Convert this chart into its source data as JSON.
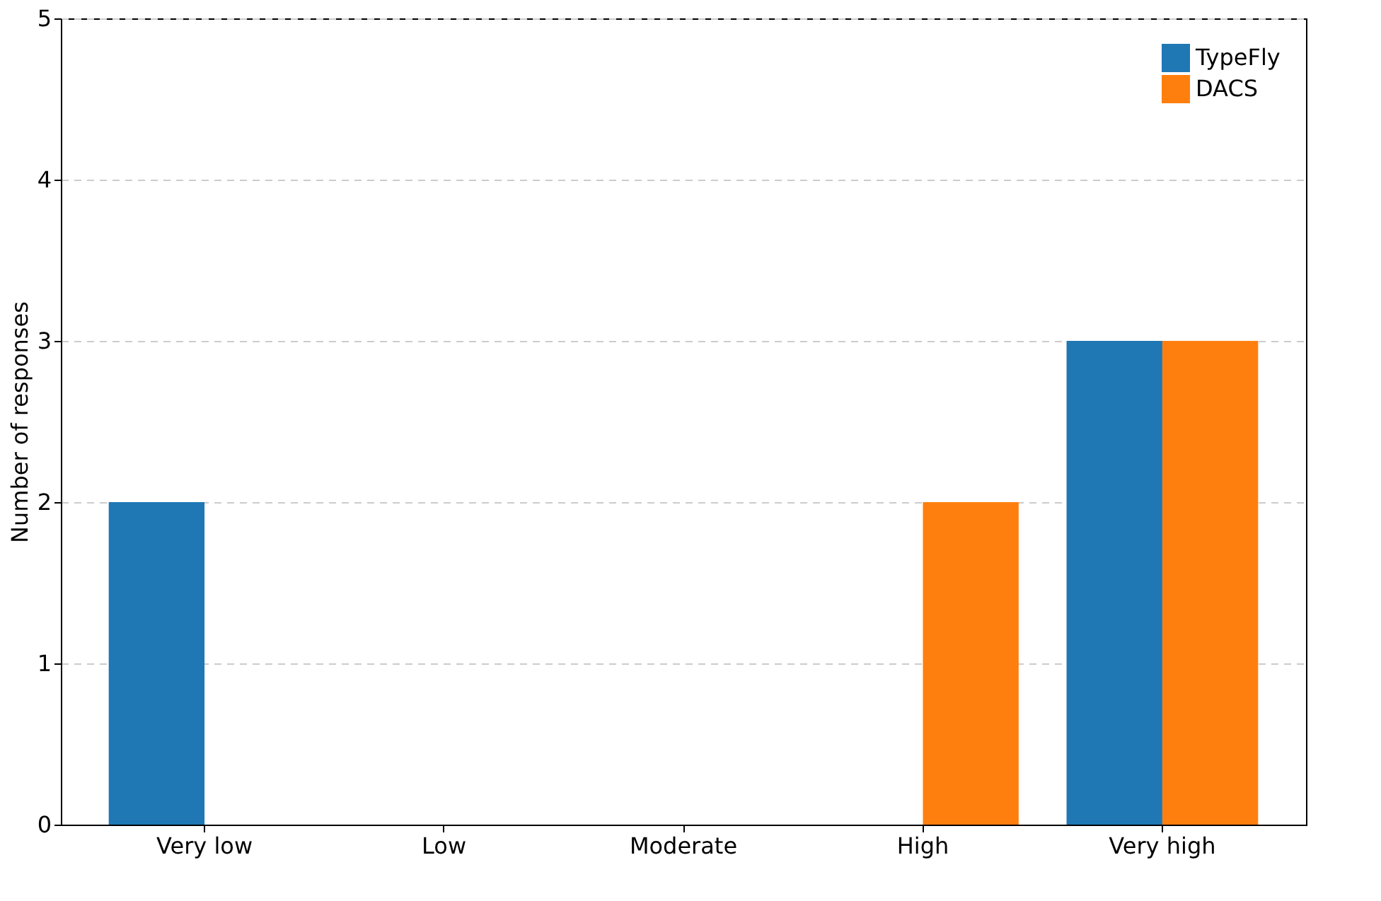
{
  "chart_data": {
    "type": "bar",
    "ylabel": "Number of responses",
    "categories": [
      "Very low",
      "Low",
      "Moderate",
      "High",
      "Very high"
    ],
    "series": [
      {
        "name": "TypeFly",
        "color": "#1f77b4",
        "values": [
          2,
          0,
          0,
          0,
          3
        ]
      },
      {
        "name": "DACS",
        "color": "#ff7f0e",
        "values": [
          0,
          0,
          0,
          2,
          3
        ]
      }
    ],
    "ylim": [
      0,
      5
    ],
    "yticks": [
      0,
      1,
      2,
      3,
      4,
      5
    ],
    "grid": "y",
    "legend": "top right"
  }
}
